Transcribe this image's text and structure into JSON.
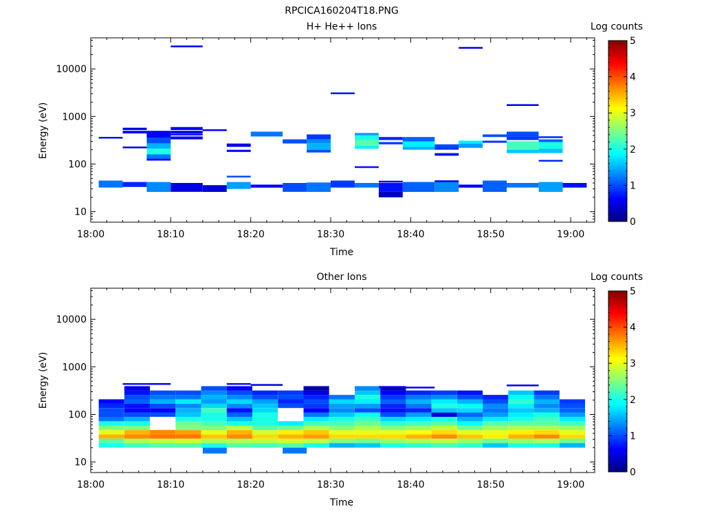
{
  "figure_title": "RPCICA160204T18.PNG",
  "colormap": [
    "#00007f",
    "#0000ff",
    "#0080ff",
    "#00ffff",
    "#80ff80",
    "#ffff00",
    "#ff8000",
    "#ff0000",
    "#7f0000"
  ],
  "chart_data": [
    {
      "type": "heatmap",
      "title": "H+ He++ Ions",
      "xlabel": "Time",
      "ylabel": "Energy (eV)",
      "colorbar_label": "Log counts",
      "colorbar_range": [
        0,
        5
      ],
      "colorbar_ticks": [
        "0",
        "1",
        "2",
        "3",
        "4",
        "5"
      ],
      "x_range_min": [
        0,
        63
      ],
      "x_ticks": [
        {
          "min": 0,
          "label": "18:00"
        },
        {
          "min": 10,
          "label": "18:10"
        },
        {
          "min": 20,
          "label": "18:20"
        },
        {
          "min": 30,
          "label": "18:30"
        },
        {
          "min": 40,
          "label": "18:40"
        },
        {
          "min": 50,
          "label": "18:50"
        },
        {
          "min": 60,
          "label": "19:00"
        }
      ],
      "y_scale": "log",
      "y_range": [
        6,
        45000
      ],
      "y_ticks": [
        {
          "v": 10,
          "label": "10"
        },
        {
          "v": 100,
          "label": "100"
        },
        {
          "v": 1000,
          "label": "1000"
        },
        {
          "v": 10000,
          "label": "10000"
        }
      ],
      "cells": [
        [
          1,
          4,
          32,
          45,
          1.2
        ],
        [
          4,
          7,
          33,
          42,
          0.8
        ],
        [
          7,
          10,
          26,
          42,
          1.3
        ],
        [
          10,
          14,
          26,
          40,
          0.5
        ],
        [
          14,
          17,
          26,
          36,
          0.4
        ],
        [
          17,
          20,
          30,
          42,
          1.4
        ],
        [
          20,
          24,
          32,
          37,
          0.6
        ],
        [
          24,
          27,
          26,
          40,
          1.0
        ],
        [
          27,
          30,
          26,
          41,
          1.2
        ],
        [
          30,
          33,
          32,
          45,
          0.9
        ],
        [
          33,
          36,
          32,
          40,
          1.2
        ],
        [
          36,
          39,
          26,
          40,
          0.7
        ],
        [
          36,
          39,
          20,
          26,
          0.3
        ],
        [
          39,
          43,
          26,
          42,
          1.1
        ],
        [
          43,
          46,
          26,
          44,
          1.3
        ],
        [
          46,
          49,
          32,
          37,
          0.6
        ],
        [
          49,
          52,
          26,
          45,
          1.1
        ],
        [
          52,
          56,
          32,
          40,
          1.2
        ],
        [
          56,
          59,
          26,
          42,
          1.4
        ],
        [
          59,
          62,
          32,
          40,
          0.7
        ],
        [
          7,
          10,
          360,
          500,
          0.6
        ],
        [
          7,
          10,
          270,
          360,
          1.0
        ],
        [
          7,
          10,
          210,
          270,
          1.5
        ],
        [
          7,
          10,
          160,
          210,
          2.0
        ],
        [
          7,
          10,
          130,
          160,
          1.2
        ],
        [
          7,
          10,
          118,
          130,
          0.7
        ],
        [
          4,
          7,
          440,
          500,
          0.6
        ],
        [
          4,
          7,
          520,
          580,
          0.5
        ],
        [
          10,
          14,
          330,
          380,
          0.6
        ],
        [
          10,
          14,
          440,
          500,
          0.5
        ],
        [
          10,
          14,
          520,
          600,
          0.6
        ],
        [
          17,
          20,
          230,
          270,
          0.5
        ],
        [
          17,
          20,
          180,
          200,
          0.7
        ],
        [
          20,
          24,
          380,
          480,
          1.2
        ],
        [
          24,
          27,
          270,
          330,
          1.0
        ],
        [
          27,
          30,
          330,
          420,
          0.9
        ],
        [
          27,
          30,
          270,
          330,
          1.3
        ],
        [
          27,
          30,
          200,
          270,
          1.5
        ],
        [
          27,
          30,
          175,
          200,
          1.0
        ],
        [
          33,
          36,
          400,
          450,
          1.4
        ],
        [
          33,
          36,
          320,
          400,
          2.0
        ],
        [
          33,
          36,
          240,
          320,
          2.3
        ],
        [
          33,
          36,
          210,
          240,
          1.8
        ],
        [
          36,
          39,
          320,
          370,
          0.8
        ],
        [
          36,
          39,
          260,
          290,
          0.9
        ],
        [
          39,
          43,
          300,
          370,
          1.1
        ],
        [
          39,
          43,
          230,
          300,
          1.8
        ],
        [
          39,
          43,
          200,
          230,
          1.5
        ],
        [
          43,
          46,
          230,
          260,
          1.0
        ],
        [
          43,
          46,
          200,
          230,
          0.9
        ],
        [
          43,
          46,
          150,
          170,
          0.7
        ],
        [
          46,
          49,
          270,
          310,
          1.8
        ],
        [
          46,
          49,
          220,
          270,
          1.4
        ],
        [
          49,
          52,
          370,
          420,
          1.0
        ],
        [
          49,
          52,
          280,
          310,
          0.9
        ],
        [
          52,
          56,
          380,
          480,
          1.0
        ],
        [
          52,
          56,
          320,
          380,
          0.9
        ],
        [
          52,
          56,
          200,
          300,
          2.2
        ],
        [
          52,
          56,
          170,
          200,
          1.6
        ],
        [
          56,
          59,
          290,
          330,
          1.1
        ],
        [
          56,
          59,
          210,
          290,
          2.0
        ],
        [
          56,
          59,
          170,
          210,
          1.6
        ]
      ],
      "lines": [
        [
          1,
          4,
          360,
          0.7
        ],
        [
          4,
          7,
          225,
          0.5
        ],
        [
          10,
          14,
          420,
          0.6
        ],
        [
          14,
          17,
          520,
          0.6
        ],
        [
          17,
          20,
          55,
          1.0
        ],
        [
          30,
          33,
          3100,
          0.7
        ],
        [
          33,
          36,
          87,
          0.7
        ],
        [
          36,
          39,
          43,
          0.5
        ],
        [
          43,
          46,
          44,
          0.5
        ],
        [
          52,
          56,
          1750,
          0.5
        ],
        [
          56,
          59,
          370,
          0.8
        ],
        [
          56,
          59,
          118,
          0.8
        ],
        [
          10,
          14,
          30000,
          0.6
        ],
        [
          46,
          49,
          28000,
          0.5
        ]
      ]
    },
    {
      "type": "heatmap",
      "title": "Other Ions",
      "xlabel": "Time",
      "ylabel": "Energy (eV)",
      "colorbar_label": "Log counts",
      "colorbar_range": [
        0,
        5
      ],
      "colorbar_ticks": [
        "0",
        "1",
        "2",
        "3",
        "4",
        "5"
      ],
      "x_range_min": [
        0,
        63
      ],
      "x_ticks": [
        {
          "min": 0,
          "label": "18:00"
        },
        {
          "min": 10,
          "label": "18:10"
        },
        {
          "min": 20,
          "label": "18:20"
        },
        {
          "min": 30,
          "label": "18:30"
        },
        {
          "min": 40,
          "label": "18:40"
        },
        {
          "min": 50,
          "label": "18:50"
        },
        {
          "min": 60,
          "label": "19:00"
        }
      ],
      "y_scale": "log",
      "y_range": [
        6,
        45000
      ],
      "y_ticks": [
        {
          "v": 10,
          "label": "10"
        },
        {
          "v": 100,
          "label": "100"
        },
        {
          "v": 1000,
          "label": "1000"
        },
        {
          "v": 10000,
          "label": "10000"
        }
      ],
      "band_edges": [
        20,
        25,
        31,
        38,
        47,
        58,
        72,
        89,
        110,
        136,
        168,
        208,
        257,
        318,
        393
      ],
      "band_values": [
        [
          2.0,
          2.3,
          3.5,
          3.0,
          2.5,
          2.0,
          1.2,
          1.0,
          1.0,
          0.8,
          0.6,
          null,
          null,
          null
        ],
        [
          2.2,
          2.7,
          3.7,
          3.5,
          2.5,
          2.0,
          1.5,
          1.0,
          0.6,
          0.7,
          1.1,
          1.0,
          0.7,
          0.5
        ],
        [
          2.3,
          2.8,
          3.8,
          3.7,
          null,
          null,
          null,
          1.0,
          0.6,
          1.0,
          1.5,
          1.2,
          1.0,
          null
        ],
        [
          2.3,
          2.9,
          3.8,
          3.6,
          2.5,
          2.4,
          2.0,
          1.6,
          1.5,
          1.3,
          1.8,
          1.2,
          1.0,
          null
        ],
        [
          2.0,
          2.7,
          3.4,
          3.0,
          2.5,
          2.2,
          2.0,
          2.0,
          2.2,
          1.7,
          1.4,
          1.5,
          1.3,
          1.0
        ],
        [
          2.3,
          2.7,
          3.7,
          3.5,
          2.8,
          2.0,
          1.6,
          1.1,
          0.7,
          1.3,
          1.7,
          1.3,
          1.0,
          0.6
        ],
        [
          2.2,
          2.8,
          3.3,
          2.9,
          2.3,
          2.0,
          2.0,
          2.0,
          1.7,
          1.6,
          1.4,
          1.0,
          0.8,
          null
        ],
        [
          2.3,
          2.9,
          3.5,
          3.2,
          2.4,
          1.8,
          null,
          null,
          null,
          1.0,
          0.8,
          1.0,
          0.9,
          null
        ],
        [
          2.0,
          2.8,
          3.6,
          3.4,
          2.7,
          2.2,
          1.8,
          1.2,
          0.6,
          0.9,
          1.0,
          0.8,
          0.5,
          0.2
        ],
        [
          1.5,
          2.5,
          3.3,
          3.0,
          2.5,
          2.2,
          2.0,
          1.6,
          1.3,
          1.4,
          1.7,
          1.2,
          null,
          null
        ],
        [
          1.6,
          2.4,
          3.3,
          3.0,
          2.7,
          2.4,
          2.2,
          1.9,
          1.0,
          1.4,
          1.8,
          2.0,
          1.6,
          1.3
        ],
        [
          2.0,
          2.6,
          3.3,
          3.0,
          2.5,
          2.1,
          1.7,
          1.0,
          0.7,
          0.8,
          1.1,
          0.9,
          0.6,
          0.3
        ],
        [
          2.1,
          2.7,
          3.5,
          3.1,
          2.6,
          2.2,
          1.8,
          1.4,
          0.8,
          1.2,
          1.5,
          1.2,
          0.8,
          null
        ],
        [
          2.2,
          2.8,
          3.7,
          3.3,
          2.8,
          2.3,
          2.0,
          0.4,
          1.6,
          2.0,
          1.8,
          1.3,
          0.9,
          null
        ],
        [
          2.1,
          2.6,
          3.4,
          3.0,
          2.4,
          1.9,
          1.5,
          1.1,
          1.7,
          1.9,
          1.5,
          1.0,
          0.7,
          null
        ],
        [
          1.6,
          2.4,
          3.2,
          3.0,
          2.6,
          2.3,
          1.8,
          1.4,
          1.2,
          1.3,
          1.0,
          0.8,
          null,
          null
        ],
        [
          2.0,
          2.6,
          3.5,
          3.2,
          2.7,
          2.3,
          2.0,
          1.8,
          1.6,
          1.8,
          2.1,
          1.9,
          1.6,
          null
        ],
        [
          2.0,
          2.7,
          3.7,
          3.3,
          2.7,
          2.3,
          2.2,
          2.0,
          1.5,
          1.3,
          1.5,
          1.2,
          0.9,
          null
        ],
        [
          1.5,
          2.4,
          3.3,
          3.0,
          2.6,
          2.2,
          1.8,
          1.4,
          1.1,
          1.0,
          0.9,
          null,
          null,
          null
        ]
      ],
      "extra_cells": [
        [
          14,
          17,
          15,
          20,
          1.2
        ],
        [
          24,
          27,
          15,
          20,
          1.2
        ]
      ],
      "lines": [
        [
          4,
          7,
          440,
          0.7
        ],
        [
          7,
          10,
          440,
          0.6
        ],
        [
          17,
          20,
          440,
          0.7
        ],
        [
          20,
          24,
          420,
          0.5
        ],
        [
          36,
          39,
          380,
          0.6
        ],
        [
          39,
          43,
          370,
          0.6
        ],
        [
          52,
          56,
          410,
          0.6
        ]
      ]
    }
  ]
}
